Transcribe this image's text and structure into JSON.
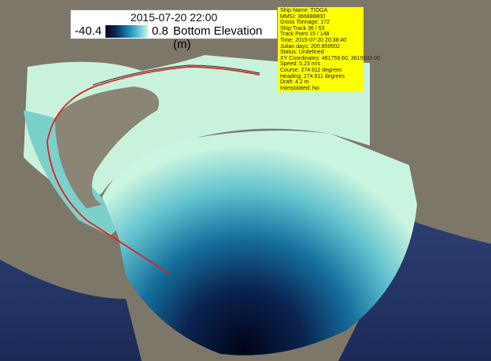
{
  "legend": {
    "timestamp": "2015-07-20 22:00",
    "min": "-40.4",
    "max": "0.8",
    "label": "Bottom Elevation (m)",
    "colormap": [
      "#03051a",
      "#0a2a55",
      "#1479a8",
      "#52c0d6",
      "#c8f7e0"
    ]
  },
  "info": [
    "Ship Name: TIOGA",
    "MMSI: 366888800",
    "Gross Tonnage: 172",
    "Ship Track 36 / 53",
    "Track Point 15 / 148",
    "Time: 2015-07-20 20:38:40",
    "Julian days: 200.859502",
    "Status: Undefined",
    "XY Coordinates: 481759.60, 3619933.00",
    "Speed: 5.23 m/s",
    "Course: 274.611 degrees",
    "Heading: 274.611 degrees",
    "Draft: 4.2 m",
    "Interpolated: No"
  ],
  "track_color": "#e02020"
}
